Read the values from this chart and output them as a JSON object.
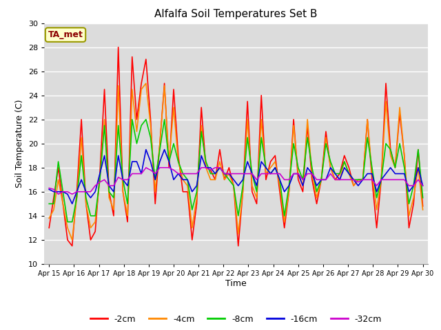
{
  "title": "Alfalfa Soil Temperatures Set B",
  "xlabel": "Time",
  "ylabel": "Soil Temperature (C)",
  "ylim": [
    10,
    30
  ],
  "yticks": [
    10,
    12,
    14,
    16,
    18,
    20,
    22,
    24,
    26,
    28,
    30
  ],
  "bg_color": "#dcdcdc",
  "annotation_text": "TA_met",
  "annotation_bg": "#ffffcc",
  "annotation_border": "#999900",
  "annotation_text_color": "#8b0000",
  "series": {
    "-2cm": {
      "color": "#ff0000",
      "lw": 1.2
    },
    "-4cm": {
      "color": "#ff8800",
      "lw": 1.2
    },
    "-8cm": {
      "color": "#00cc00",
      "lw": 1.2
    },
    "-16cm": {
      "color": "#0000dd",
      "lw": 1.2
    },
    "-32cm": {
      "color": "#cc00cc",
      "lw": 1.2
    }
  },
  "x_tick_labels": [
    "Apr 15",
    "Apr 16",
    "Apr 17",
    "Apr 18",
    "Apr 19",
    "Apr 20",
    "Apr 21",
    "Apr 22",
    "Apr 23",
    "Apr 24",
    "Apr 25",
    "Apr 26",
    "Apr 27",
    "Apr 28",
    "Apr 29",
    "Apr 30"
  ],
  "t_2cm": [
    13.0,
    15.5,
    18.0,
    15.0,
    12.0,
    11.5,
    16.0,
    22.0,
    15.0,
    12.0,
    12.7,
    17.5,
    24.5,
    16.0,
    14.0,
    28.0,
    16.0,
    13.5,
    27.2,
    22.0,
    25.0,
    27.0,
    22.0,
    15.0,
    20.0,
    25.0,
    18.0,
    24.5,
    19.0,
    16.0,
    16.0,
    12.0,
    15.0,
    23.0,
    18.0,
    17.8,
    17.0,
    19.5,
    17.0,
    18.0,
    16.5,
    11.5,
    16.0,
    23.5,
    16.0,
    15.0,
    24.0,
    17.0,
    18.5,
    19.0,
    16.0,
    13.0,
    16.0,
    22.0,
    17.0,
    16.0,
    21.5,
    17.0,
    15.0,
    17.0,
    21.0,
    18.0,
    17.0,
    17.5,
    19.0,
    18.0,
    16.5,
    17.0,
    17.0,
    22.0,
    17.0,
    13.0,
    17.0,
    25.0,
    19.5,
    18.0,
    22.5,
    19.0,
    13.0,
    15.0,
    19.5,
    14.8
  ],
  "t_4cm": [
    13.8,
    14.5,
    17.0,
    15.0,
    13.0,
    12.0,
    15.5,
    20.5,
    15.0,
    13.0,
    13.5,
    17.0,
    22.0,
    15.5,
    14.5,
    24.8,
    16.0,
    14.0,
    24.5,
    21.0,
    24.5,
    25.0,
    21.5,
    16.0,
    20.0,
    24.8,
    18.5,
    23.0,
    18.5,
    17.0,
    16.5,
    13.0,
    15.5,
    21.5,
    18.0,
    17.0,
    17.0,
    18.5,
    17.0,
    17.5,
    16.5,
    12.5,
    16.0,
    22.0,
    16.5,
    15.5,
    22.0,
    17.5,
    18.0,
    18.5,
    16.5,
    13.5,
    16.0,
    21.5,
    17.5,
    16.5,
    22.0,
    17.5,
    15.5,
    17.0,
    20.5,
    18.0,
    17.0,
    17.0,
    18.5,
    17.5,
    16.5,
    17.0,
    17.0,
    22.0,
    17.5,
    14.5,
    17.0,
    23.5,
    19.0,
    18.0,
    23.0,
    19.0,
    14.0,
    15.5,
    18.0,
    14.5
  ],
  "t_8cm": [
    15.0,
    15.0,
    18.5,
    16.0,
    13.5,
    13.5,
    15.5,
    19.0,
    15.5,
    14.0,
    14.0,
    17.0,
    21.5,
    16.0,
    15.5,
    21.5,
    17.0,
    15.0,
    22.0,
    20.0,
    21.5,
    22.0,
    20.5,
    17.0,
    19.5,
    22.0,
    18.5,
    20.0,
    18.5,
    17.5,
    17.0,
    14.5,
    16.0,
    21.0,
    18.5,
    17.5,
    17.5,
    18.0,
    17.5,
    17.0,
    16.5,
    14.0,
    16.5,
    20.5,
    17.5,
    16.0,
    20.5,
    18.0,
    17.5,
    18.0,
    17.0,
    14.0,
    16.5,
    20.0,
    18.0,
    17.0,
    20.5,
    18.0,
    16.0,
    17.0,
    20.0,
    18.5,
    17.5,
    17.5,
    18.5,
    17.5,
    17.0,
    17.0,
    17.0,
    20.5,
    18.0,
    15.5,
    17.0,
    20.0,
    19.5,
    18.0,
    20.0,
    18.0,
    15.0,
    16.5,
    19.5,
    15.5
  ],
  "t_16cm": [
    16.2,
    16.0,
    16.0,
    16.0,
    15.8,
    15.0,
    16.0,
    17.0,
    16.0,
    15.5,
    16.0,
    17.5,
    19.0,
    16.5,
    16.0,
    19.0,
    17.0,
    16.5,
    18.5,
    18.5,
    17.5,
    19.5,
    18.5,
    17.0,
    18.5,
    19.5,
    18.5,
    17.0,
    17.5,
    17.0,
    17.0,
    16.0,
    16.5,
    19.0,
    18.0,
    18.0,
    17.5,
    18.0,
    17.5,
    17.5,
    17.0,
    16.5,
    17.0,
    18.5,
    17.5,
    16.5,
    18.5,
    18.0,
    17.5,
    18.0,
    17.0,
    16.0,
    16.5,
    17.5,
    17.5,
    16.5,
    18.0,
    17.5,
    16.5,
    17.0,
    17.0,
    18.0,
    17.5,
    17.0,
    18.0,
    17.5,
    17.0,
    16.5,
    17.0,
    17.5,
    17.5,
    16.0,
    17.0,
    17.5,
    18.0,
    17.5,
    17.5,
    17.5,
    16.0,
    16.5,
    18.0,
    16.5
  ],
  "t_32cm": [
    16.3,
    16.2,
    15.8,
    16.0,
    16.0,
    15.8,
    16.0,
    16.0,
    16.0,
    16.0,
    16.5,
    16.8,
    17.0,
    16.5,
    16.5,
    17.2,
    17.0,
    17.0,
    17.5,
    17.5,
    17.5,
    18.0,
    17.8,
    17.5,
    18.0,
    18.0,
    18.0,
    17.8,
    17.5,
    17.5,
    17.5,
    17.5,
    17.5,
    18.0,
    18.0,
    17.8,
    18.0,
    18.0,
    17.5,
    17.5,
    17.5,
    17.5,
    17.5,
    17.5,
    17.5,
    17.0,
    17.5,
    17.5,
    17.5,
    17.5,
    17.5,
    17.0,
    17.0,
    17.5,
    17.5,
    17.0,
    17.5,
    17.5,
    17.0,
    17.0,
    17.0,
    17.5,
    17.0,
    17.0,
    17.0,
    17.0,
    17.0,
    16.8,
    17.0,
    17.0,
    17.0,
    16.5,
    17.0,
    17.0,
    17.0,
    17.0,
    17.0,
    17.0,
    16.5,
    16.5,
    17.0,
    16.5
  ]
}
